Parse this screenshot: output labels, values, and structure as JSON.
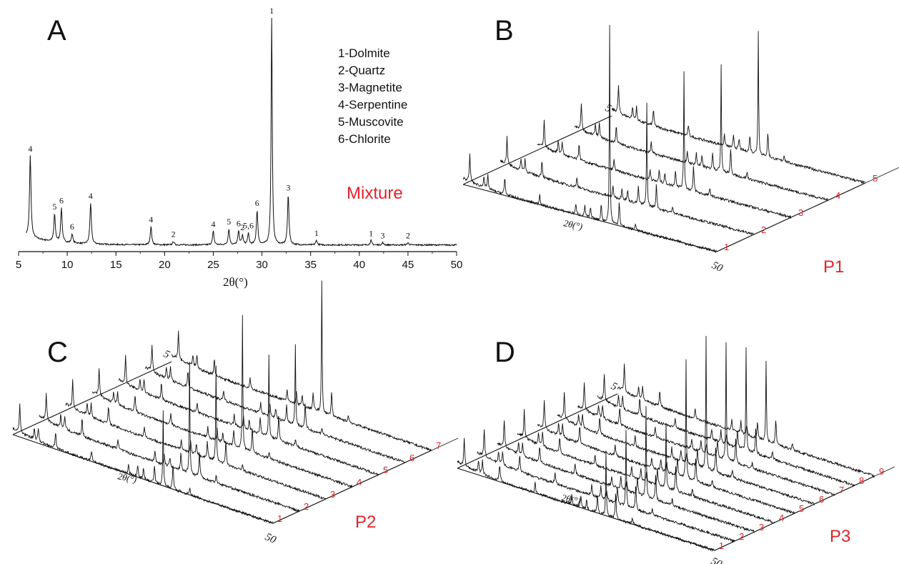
{
  "panels": {
    "A": "A",
    "B": "B",
    "C": "C",
    "D": "D"
  },
  "legend": [
    "1-Dolmite",
    "2-Quartz",
    "3-Magnetite",
    "4-Serpentine",
    "5-Muscovite",
    "6-Chlorite"
  ],
  "colors": {
    "ink": "#111111",
    "accent_red": "#e0242a"
  },
  "chart_data": [
    {
      "panel": "A",
      "type": "line",
      "label": "Mixture",
      "xlabel": "2θ(°)",
      "ylabel": "",
      "xlim": [
        5,
        50
      ],
      "xticks": [
        5,
        10,
        15,
        20,
        25,
        30,
        35,
        40,
        45,
        50
      ],
      "grid": false,
      "legend_position": "top-center",
      "peaks": [
        {
          "x": 6.2,
          "height": 0.36,
          "label": "4"
        },
        {
          "x": 8.7,
          "height": 0.12,
          "label": "5"
        },
        {
          "x": 9.4,
          "height": 0.15,
          "label": "6"
        },
        {
          "x": 10.5,
          "height": 0.04,
          "label": "6"
        },
        {
          "x": 12.4,
          "height": 0.18,
          "label": "4"
        },
        {
          "x": 18.6,
          "height": 0.08,
          "label": "4"
        },
        {
          "x": 20.9,
          "height": 0.015,
          "label": "2"
        },
        {
          "x": 25.0,
          "height": 0.06,
          "label": "4"
        },
        {
          "x": 26.6,
          "height": 0.07,
          "label": "5"
        },
        {
          "x": 27.6,
          "height": 0.06,
          "label": "6"
        },
        {
          "x": 28.0,
          "height": 0.04,
          "label": "2"
        },
        {
          "x": 28.6,
          "height": 0.05,
          "label": "5,6"
        },
        {
          "x": 29.5,
          "height": 0.15,
          "label": "6"
        },
        {
          "x": 31.0,
          "height": 1.0,
          "label": "1"
        },
        {
          "x": 32.7,
          "height": 0.22,
          "label": "3"
        },
        {
          "x": 35.6,
          "height": 0.02,
          "label": "1"
        },
        {
          "x": 41.2,
          "height": 0.02,
          "label": "1"
        },
        {
          "x": 42.4,
          "height": 0.01,
          "label": "3"
        },
        {
          "x": 45.0,
          "height": 0.01,
          "label": "2"
        }
      ]
    },
    {
      "panel": "B",
      "type": "line",
      "label": "P1",
      "xlabel": "2θ(°)",
      "axis_start": "5",
      "axis_end": "50",
      "series": [
        {
          "name": "1",
          "peak_height": 0.92
        },
        {
          "name": "2",
          "peak_height": 0.48
        },
        {
          "name": "3",
          "peak_height": 0.55
        },
        {
          "name": "4",
          "peak_height": 0.5
        },
        {
          "name": "5",
          "peak_height": 0.58
        }
      ]
    },
    {
      "panel": "C",
      "type": "line",
      "label": "P2",
      "xlabel": "2θ(°)",
      "axis_start": "5",
      "axis_end": "50",
      "series": [
        {
          "name": "1",
          "peak_height": 0.35
        },
        {
          "name": "2",
          "peak_height": 0.52
        },
        {
          "name": "3",
          "peak_height": 0.45
        },
        {
          "name": "4",
          "peak_height": 0.62
        },
        {
          "name": "5",
          "peak_height": 0.38
        },
        {
          "name": "6",
          "peak_height": 0.38
        },
        {
          "name": "7",
          "peak_height": 0.62
        }
      ]
    },
    {
      "panel": "D",
      "type": "line",
      "label": "P3",
      "xlabel": "2θ(°)",
      "axis_start": "5",
      "axis_end": "50",
      "series": [
        {
          "name": "1",
          "peak_height": 0.3
        },
        {
          "name": "2",
          "peak_height": 0.35
        },
        {
          "name": "3",
          "peak_height": 0.42
        },
        {
          "name": "4",
          "peak_height": 0.3
        },
        {
          "name": "5",
          "peak_height": 0.55
        },
        {
          "name": "6",
          "peak_height": 0.62
        },
        {
          "name": "7",
          "peak_height": 0.55
        },
        {
          "name": "8",
          "peak_height": 0.48
        },
        {
          "name": "9",
          "peak_height": 0.38
        }
      ]
    }
  ]
}
